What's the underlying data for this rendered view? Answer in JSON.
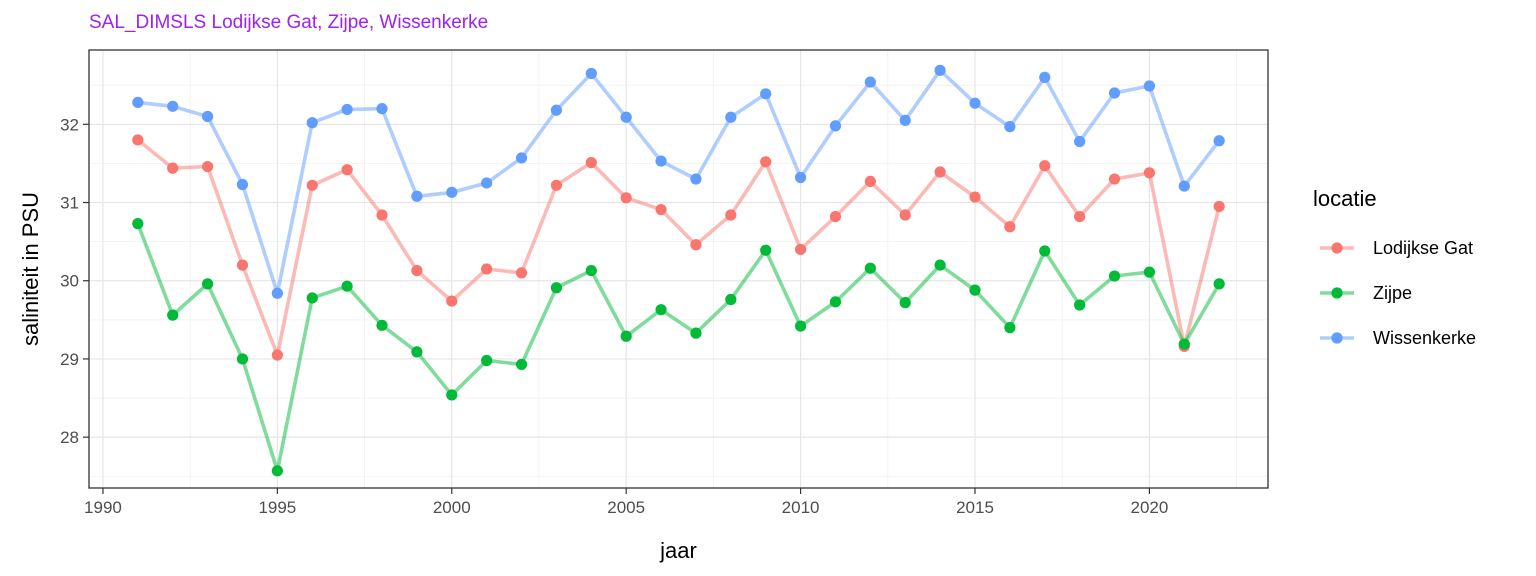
{
  "chart_data": {
    "type": "line",
    "title": "SAL_DIMSLS Lodijkse Gat, Zijpe, Wissenkerke",
    "xlabel": "jaar",
    "ylabel": "saliniteit in PSU",
    "x": [
      1991,
      1992,
      1993,
      1994,
      1995,
      1996,
      1997,
      1998,
      1999,
      2000,
      2001,
      2002,
      2003,
      2004,
      2005,
      2006,
      2007,
      2008,
      2009,
      2010,
      2011,
      2012,
      2013,
      2014,
      2015,
      2016,
      2017,
      2018,
      2019,
      2020,
      2021,
      2022
    ],
    "xlim": [
      1989.6,
      2023.4
    ],
    "ylim": [
      27.35,
      32.95
    ],
    "xticks": [
      1990,
      1995,
      2000,
      2005,
      2010,
      2015,
      2020
    ],
    "yticks": [
      28,
      29,
      30,
      31,
      32
    ],
    "grid": true,
    "legend": {
      "title": "locatie",
      "position": "right",
      "entries": [
        "Lodijkse Gat",
        "Zijpe",
        "Wissenkerke"
      ]
    },
    "series": [
      {
        "name": "Lodijkse Gat",
        "color": "#f8766d",
        "values": [
          31.8,
          31.44,
          31.46,
          30.2,
          29.05,
          31.22,
          31.42,
          30.84,
          30.13,
          29.74,
          30.15,
          30.1,
          31.22,
          31.51,
          31.06,
          30.91,
          30.46,
          30.84,
          31.52,
          30.4,
          30.82,
          31.27,
          30.84,
          31.39,
          31.07,
          30.69,
          31.47,
          30.82,
          31.3,
          31.38,
          29.16,
          30.95
        ]
      },
      {
        "name": "Zijpe",
        "color": "#00ba38",
        "values": [
          30.73,
          29.56,
          29.96,
          29.0,
          27.57,
          29.78,
          29.93,
          29.43,
          29.09,
          28.54,
          28.98,
          28.93,
          29.91,
          30.13,
          29.29,
          29.63,
          29.33,
          29.76,
          30.39,
          29.42,
          29.73,
          30.16,
          29.72,
          30.2,
          29.88,
          29.4,
          30.38,
          29.69,
          30.06,
          30.11,
          29.19,
          29.96
        ]
      },
      {
        "name": "Wissenkerke",
        "color": "#619cff",
        "values": [
          32.28,
          32.23,
          32.1,
          31.23,
          29.84,
          32.02,
          32.19,
          32.2,
          31.08,
          31.13,
          31.25,
          31.57,
          32.18,
          32.65,
          32.09,
          31.53,
          31.3,
          32.09,
          32.39,
          31.32,
          31.98,
          32.54,
          32.05,
          32.69,
          32.27,
          31.97,
          32.6,
          31.78,
          32.4,
          32.49,
          31.21,
          31.79
        ]
      }
    ]
  }
}
